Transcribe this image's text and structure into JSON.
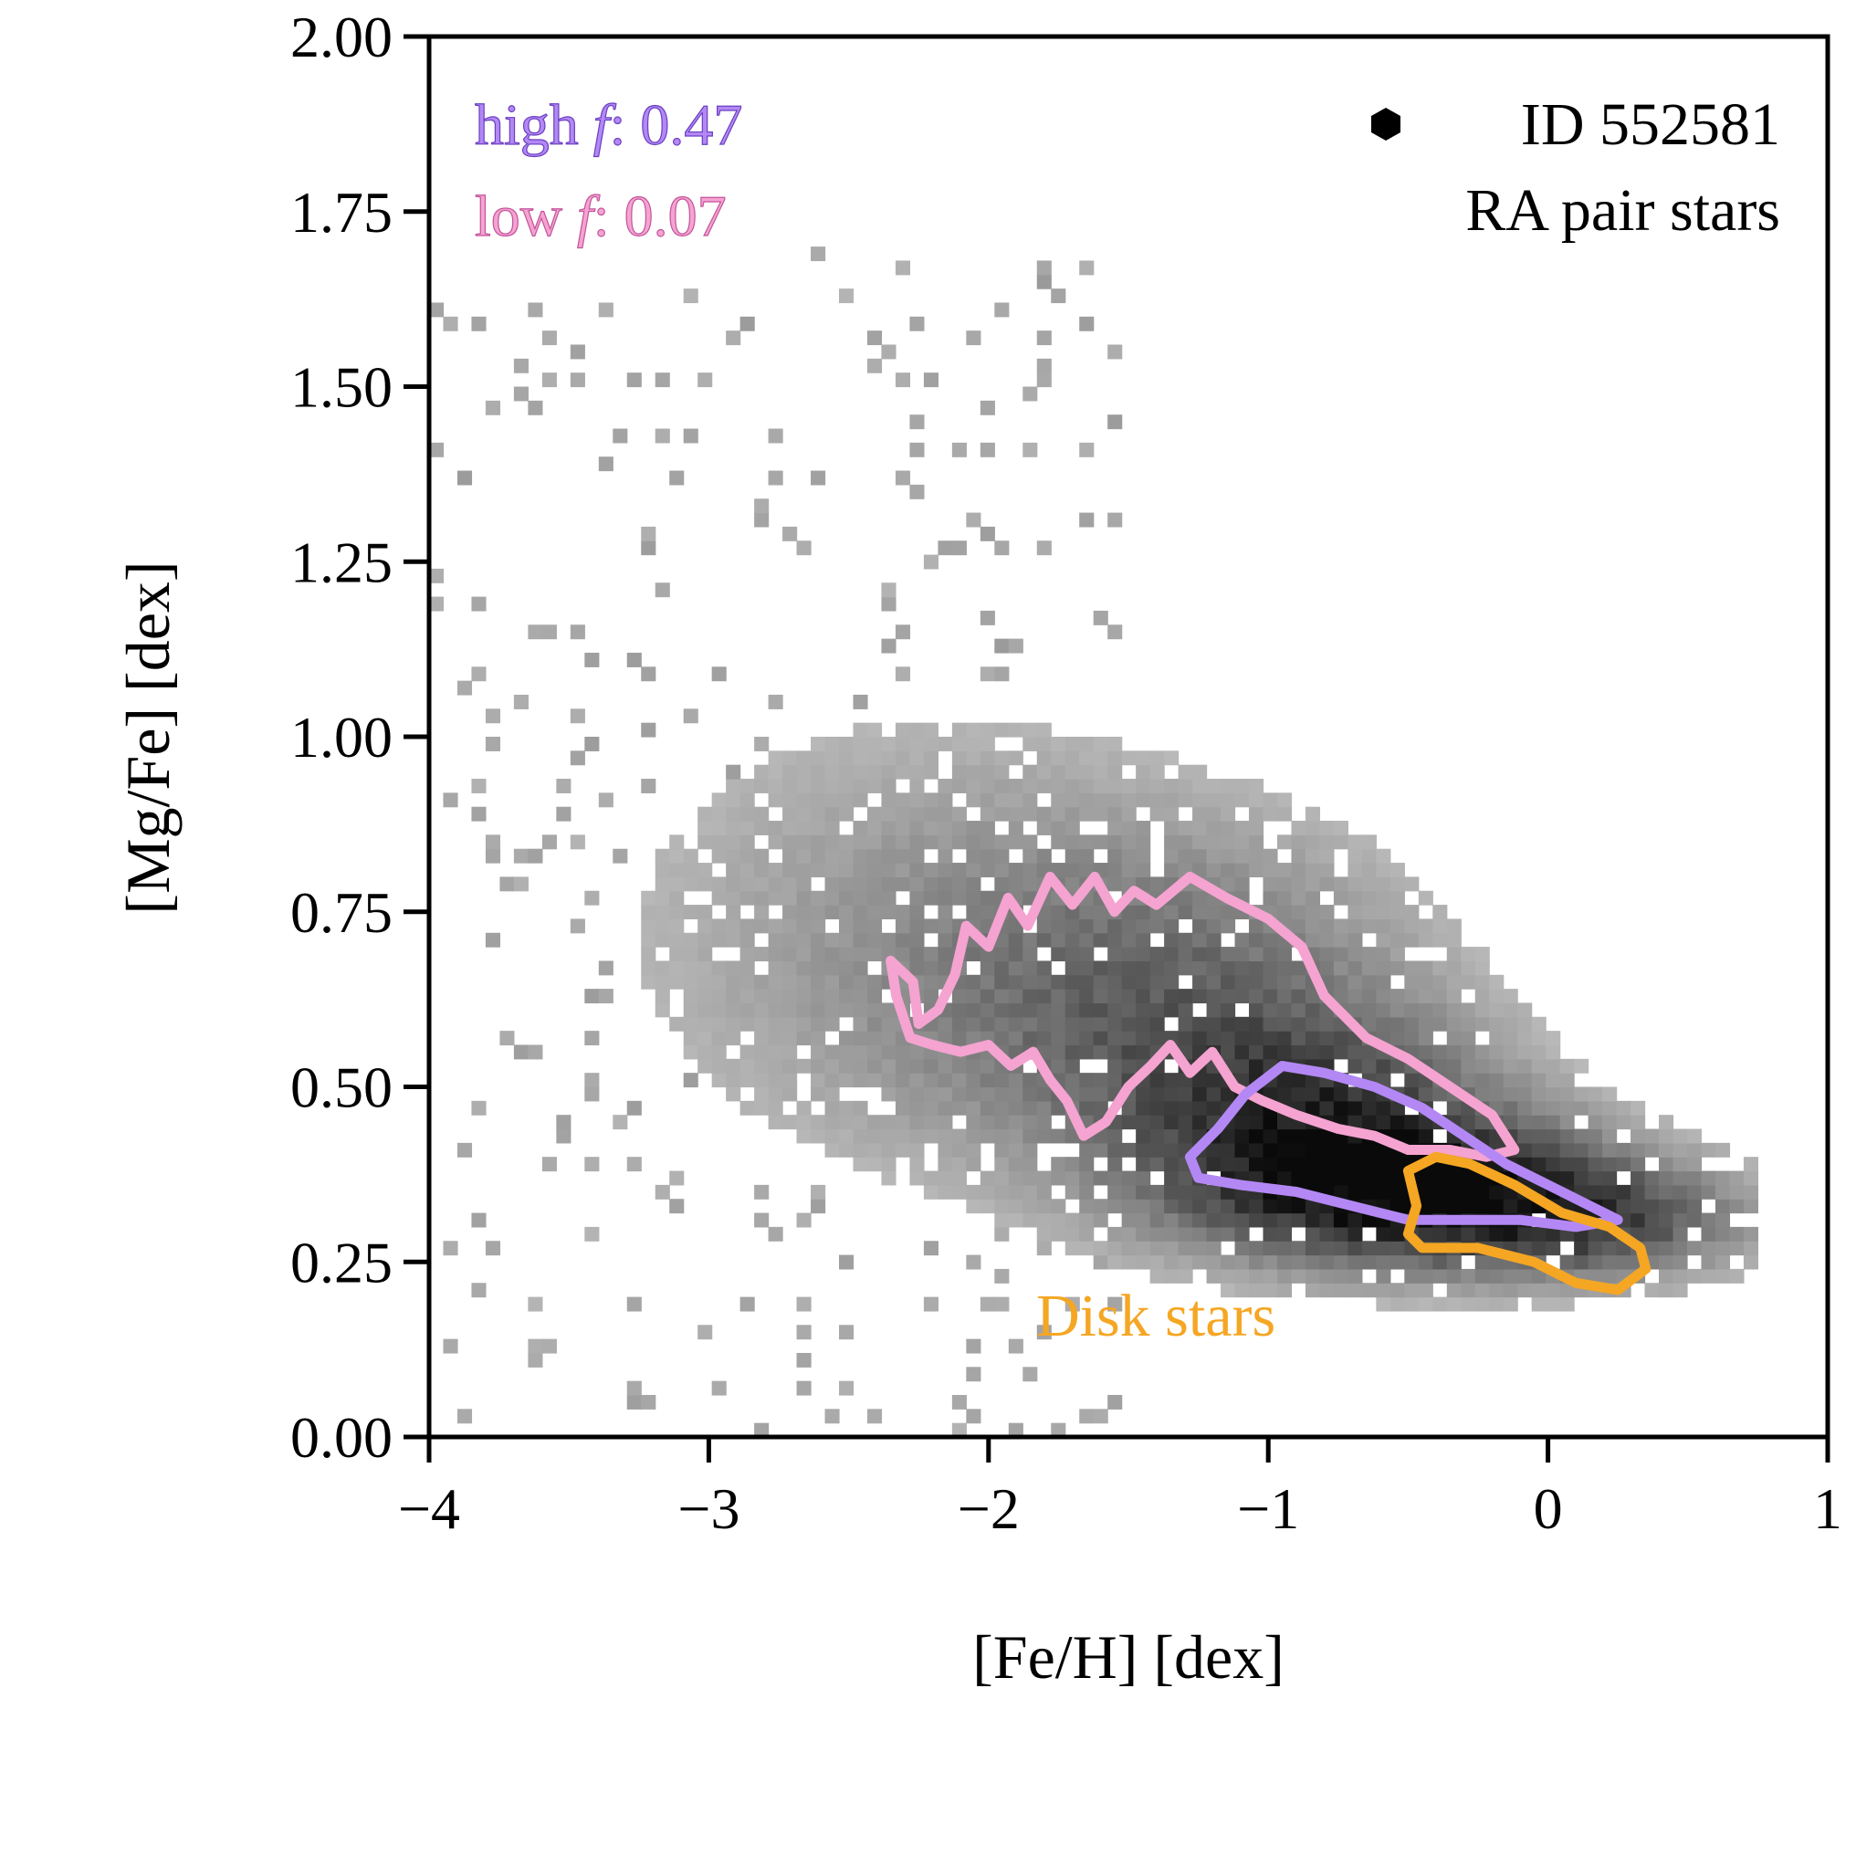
{
  "chart_data": {
    "type": "heatmap",
    "title": "",
    "xlabel": "[Fe/H] [dex]",
    "ylabel": "[Mg/Fe] [dex]",
    "xlim": [
      -4,
      1
    ],
    "ylim": [
      0,
      2
    ],
    "xticks": [
      -4,
      -3,
      -2,
      -1,
      0,
      1
    ],
    "xtick_labels": [
      "−4",
      "−3",
      "−2",
      "−1",
      "0",
      "1"
    ],
    "yticks": [
      0,
      0.25,
      0.5,
      0.75,
      1.0,
      1.25,
      1.5,
      1.75,
      2.0
    ],
    "ytick_labels": [
      "0.00",
      "0.25",
      "0.50",
      "0.75",
      "1.00",
      "1.25",
      "1.50",
      "1.75",
      "2.00"
    ],
    "legend": {
      "position": "top-left",
      "entries": [
        {
          "label_prefix": "high ",
          "label_var": "f",
          "label_value": ": 0.47",
          "color": "#b388f5"
        },
        {
          "label_prefix": "low ",
          "label_var": "f",
          "label_value": ": 0.07",
          "color": "#f5a3d1"
        }
      ]
    },
    "annotations": {
      "star_id": "ID 552581",
      "population": "RA pair stars",
      "disk_label": "Disk stars",
      "disk_color": "#f5a623"
    },
    "density_clumps": [
      {
        "fe": -0.55,
        "mg": 0.36,
        "sfe": 0.45,
        "smg": 0.065,
        "w": 1.0
      },
      {
        "fe": -0.9,
        "mg": 0.47,
        "sfe": 0.42,
        "smg": 0.09,
        "w": 0.55
      },
      {
        "fe": -1.4,
        "mg": 0.62,
        "sfe": 0.55,
        "smg": 0.14,
        "w": 0.32
      },
      {
        "fe": -2.2,
        "mg": 0.72,
        "sfe": 0.7,
        "smg": 0.2,
        "w": 0.12
      },
      {
        "fe": 0.1,
        "mg": 0.31,
        "sfe": 0.35,
        "smg": 0.05,
        "w": 0.55
      }
    ],
    "contours": [
      {
        "name": "low-f",
        "color": "#f5a3d1",
        "points": [
          [
            -2.35,
            0.68
          ],
          [
            -2.27,
            0.65
          ],
          [
            -2.25,
            0.59
          ],
          [
            -2.18,
            0.61
          ],
          [
            -2.12,
            0.66
          ],
          [
            -2.08,
            0.73
          ],
          [
            -2.0,
            0.7
          ],
          [
            -1.93,
            0.77
          ],
          [
            -1.86,
            0.73
          ],
          [
            -1.78,
            0.8
          ],
          [
            -1.7,
            0.76
          ],
          [
            -1.62,
            0.8
          ],
          [
            -1.55,
            0.75
          ],
          [
            -1.48,
            0.78
          ],
          [
            -1.4,
            0.76
          ],
          [
            -1.28,
            0.8
          ],
          [
            -1.15,
            0.77
          ],
          [
            -1.0,
            0.74
          ],
          [
            -0.88,
            0.7
          ],
          [
            -0.8,
            0.63
          ],
          [
            -0.65,
            0.57
          ],
          [
            -0.5,
            0.54
          ],
          [
            -0.35,
            0.5
          ],
          [
            -0.2,
            0.46
          ],
          [
            -0.12,
            0.41
          ],
          [
            -0.22,
            0.4
          ],
          [
            -0.35,
            0.41
          ],
          [
            -0.5,
            0.41
          ],
          [
            -0.62,
            0.43
          ],
          [
            -0.75,
            0.44
          ],
          [
            -0.9,
            0.46
          ],
          [
            -1.02,
            0.48
          ],
          [
            -1.12,
            0.5
          ],
          [
            -1.2,
            0.55
          ],
          [
            -1.28,
            0.52
          ],
          [
            -1.35,
            0.56
          ],
          [
            -1.42,
            0.53
          ],
          [
            -1.5,
            0.5
          ],
          [
            -1.58,
            0.45
          ],
          [
            -1.66,
            0.43
          ],
          [
            -1.72,
            0.48
          ],
          [
            -1.78,
            0.51
          ],
          [
            -1.84,
            0.55
          ],
          [
            -1.92,
            0.53
          ],
          [
            -2.0,
            0.56
          ],
          [
            -2.1,
            0.55
          ],
          [
            -2.2,
            0.56
          ],
          [
            -2.28,
            0.57
          ],
          [
            -2.33,
            0.63
          ]
        ]
      },
      {
        "name": "high-f",
        "color": "#b388f5",
        "points": [
          [
            -1.28,
            0.4
          ],
          [
            -1.18,
            0.44
          ],
          [
            -1.08,
            0.49
          ],
          [
            -0.95,
            0.53
          ],
          [
            -0.8,
            0.52
          ],
          [
            -0.62,
            0.5
          ],
          [
            -0.45,
            0.47
          ],
          [
            -0.3,
            0.43
          ],
          [
            -0.15,
            0.39
          ],
          [
            0.05,
            0.35
          ],
          [
            0.25,
            0.31
          ],
          [
            0.1,
            0.3
          ],
          [
            -0.1,
            0.31
          ],
          [
            -0.3,
            0.31
          ],
          [
            -0.5,
            0.31
          ],
          [
            -0.7,
            0.33
          ],
          [
            -0.9,
            0.35
          ],
          [
            -1.1,
            0.36
          ],
          [
            -1.25,
            0.37
          ]
        ]
      },
      {
        "name": "disk",
        "color": "#f5a623",
        "points": [
          [
            -0.5,
            0.38
          ],
          [
            -0.4,
            0.4
          ],
          [
            -0.28,
            0.39
          ],
          [
            -0.12,
            0.36
          ],
          [
            0.05,
            0.32
          ],
          [
            0.22,
            0.3
          ],
          [
            0.33,
            0.27
          ],
          [
            0.35,
            0.24
          ],
          [
            0.25,
            0.21
          ],
          [
            0.1,
            0.22
          ],
          [
            -0.05,
            0.25
          ],
          [
            -0.25,
            0.27
          ],
          [
            -0.45,
            0.27
          ],
          [
            -0.5,
            0.29
          ],
          [
            -0.47,
            0.33
          ]
        ]
      }
    ]
  }
}
